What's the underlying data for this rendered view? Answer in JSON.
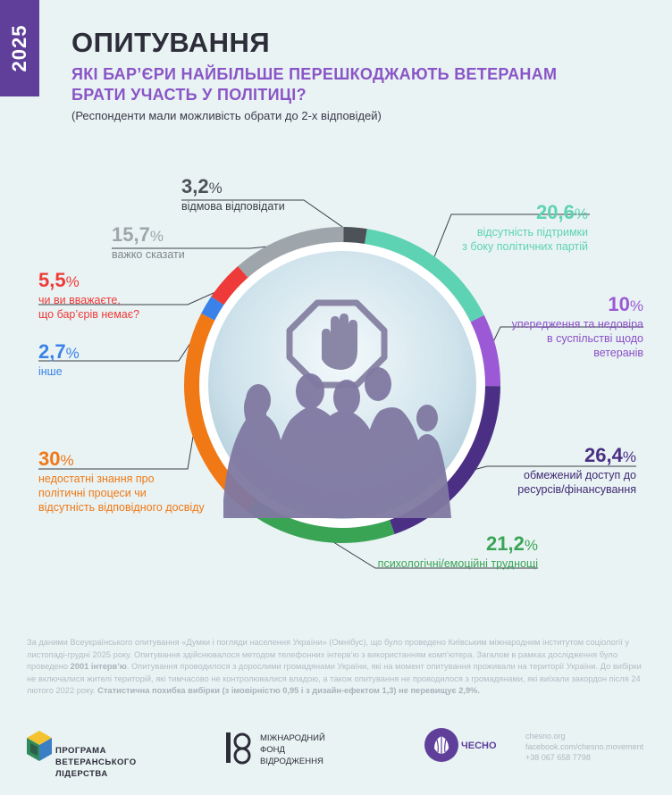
{
  "header": {
    "year": "2025",
    "title": "ОПИТУВАННЯ",
    "question_line1": "ЯКІ БАР’ЄРИ НАЙБІЛЬШЕ ПЕРЕШКОДЖАЮТЬ ВЕТЕРАНАМ",
    "question_line2": "БРАТИ УЧАСТЬ У ПОЛІТИЦІ?",
    "note": "(Респонденти мали можливість обрати до 2-х відповідей)"
  },
  "chart_data": {
    "type": "pie",
    "variant": "donut",
    "unit": "%",
    "slices": [
      {
        "label": "відсутність підтримки з боку політичних партій",
        "value": 20.6,
        "display": "20,6",
        "color": "#5dd3b3"
      },
      {
        "label": "упередження та недовіра в суспільстві щодо ветеранів",
        "value": 10,
        "display": "10",
        "color": "#9b59d6"
      },
      {
        "label": "обмежений доступ до ресурсів/фінансування",
        "value": 26.4,
        "display": "26,4",
        "color": "#4a2f84"
      },
      {
        "label": "психологічні/емоційні труднощі",
        "value": 21.2,
        "display": "21,2",
        "color": "#3aa455"
      },
      {
        "label": "недостатні знання про політичні процеси чи відсутність відповідного досвіду",
        "value": 30,
        "display": "30",
        "color": "#f07815"
      },
      {
        "label": "інше",
        "value": 2.7,
        "display": "2,7",
        "color": "#3b82e8"
      },
      {
        "label": "чи ви вважаєте, що бар’єрів немає?",
        "value": 5.5,
        "display": "5,5",
        "color": "#ee3a38"
      },
      {
        "label": "важко сказати",
        "value": 15.7,
        "display": "15,7",
        "color": "#9ea6ab"
      },
      {
        "label": "відмова відповідати",
        "value": 3.2,
        "display": "3,2",
        "color": "#4d5258"
      }
    ]
  },
  "labels": {
    "party_support": {
      "pct": "20,6",
      "sign": "%",
      "line1": "відсутність підтримки",
      "line2": "з боку політичних партій"
    },
    "prejudice": {
      "pct": "10",
      "sign": "%",
      "line1": "упередження та недовіра",
      "line2": "в суспільстві щодо",
      "line3": "ветеранів"
    },
    "resources": {
      "pct": "26,4",
      "sign": "%",
      "line1": "обмежений доступ до",
      "line2": "ресурсів/фінансування"
    },
    "psych": {
      "pct": "21,2",
      "sign": "%",
      "line1": "психологічні/емоційні труднощі"
    },
    "knowledge": {
      "pct": "30",
      "sign": "%",
      "line1": "недостатні знання про",
      "line2": "політичні процеси чи",
      "line3": "відсутність відповідного досвіду"
    },
    "other": {
      "pct": "2,7",
      "sign": "%",
      "line1": "інше"
    },
    "no_barriers": {
      "pct": "5,5",
      "sign": "%",
      "line1": "чи ви вважаєте,",
      "line2": "що бар’єрів немає?"
    },
    "hard_to_say": {
      "pct": "15,7",
      "sign": "%",
      "line1": "важко сказати"
    },
    "refusal": {
      "pct": "3,2",
      "sign": "%",
      "line1": "відмова відповідати"
    }
  },
  "source": {
    "part1": "За даними Всеукраїнського опитування «Думки і погляди населення України» (Омнібус), що було проведено Київським міжнародним інститутом соціології у листопаді-грудні 2025 року. Опитування здійснювалося методом телефонних інтерв’ю з використанням комп’ютера. Загалом в рамках дослідження було проведено ",
    "bold1": "2001 інтерв’ю",
    "part2": ". Опитування проводилося з дорослими громадянами України, які на момент опитування проживали на території України. До вибірки не включалися жителі територій, які тимчасово не контролювалися владою, а також опитування не проводилося з громадянами, які виїхали закордон після 24 лютого 2022 року. ",
    "bold2": "Статистична похибка вибірки (з імовірністю 0,95 і з дизайн-ефектом 1,3) не перевищує 2,9%."
  },
  "footer": {
    "pvl_line1": "ПРОГРАМА",
    "pvl_line2": "ВЕТЕРАНСЬКОГО",
    "pvl_line3": "ЛІДЕРСТВА",
    "mfv_line1": "МІЖНАРОДНИЙ",
    "mfv_line2": "ФОНД",
    "mfv_line3": "ВІДРОДЖЕННЯ",
    "chesno": "ЧЕСНО",
    "contact_site": "chesno.org",
    "contact_fb": "facebook.com/chesno.movement",
    "contact_phone": "+38 067 658 7798"
  },
  "colors": {
    "background": "#e9f3f4",
    "accent_purple": "#5f3f99",
    "question_purple": "#8a55c6",
    "title_dark": "#2d2d39"
  }
}
